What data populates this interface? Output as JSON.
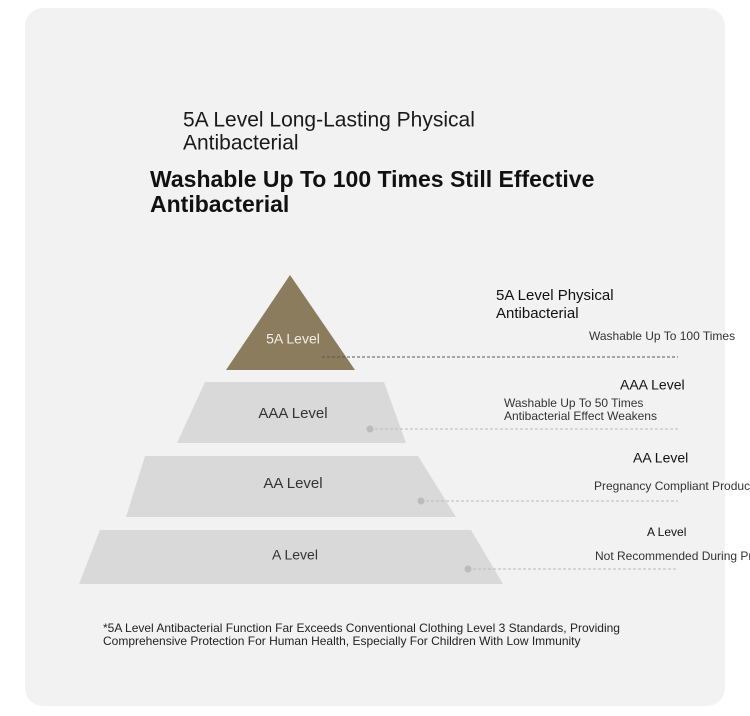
{
  "header": {
    "title_lines": [
      "5A Level Long-Lasting Physical",
      "Antibacterial"
    ],
    "subtitle_lines": [
      "Washable Up To 100 Times Still Effective",
      "Antibacterial"
    ]
  },
  "pyramid": {
    "levels": [
      {
        "label": "5A Level"
      },
      {
        "label": "AAA Level"
      },
      {
        "label": "AA Level"
      },
      {
        "label": "A Level"
      }
    ]
  },
  "annotations": [
    {
      "title_lines": [
        "5A Level Physical",
        "Antibacterial"
      ],
      "detail_lines": [
        "Washable Up To 100 Times"
      ]
    },
    {
      "title_lines": [
        "AAA Level"
      ],
      "detail_lines": [
        "Washable Up To 50 Times",
        "Antibacterial Effect Weakens"
      ]
    },
    {
      "title_lines": [
        "AA Level"
      ],
      "detail_lines": [
        "Pregnancy Compliant Produc"
      ]
    },
    {
      "title_lines": [
        "A Level"
      ],
      "detail_lines": [
        "Not Recommended During Pr"
      ]
    }
  ],
  "footnote_lines": [
    "*5A Level Antibacterial Function Far Exceeds Conventional Clothing Level 3 Standards, Providing",
    "Comprehensive Protection For Human Health, Especially For Children With Low Immunity"
  ]
}
